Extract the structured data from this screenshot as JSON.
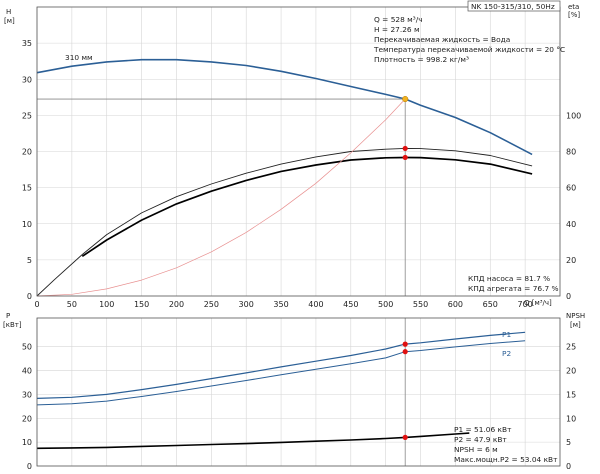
{
  "chart_data": [
    {
      "type": "line",
      "title": "NK 150-315/310, 50Hz",
      "xlabel": "Q [м³/ч]",
      "ylabel": "H",
      "ylabel_unit": "[м]",
      "y2label": "eta",
      "y2label_unit": "[%]",
      "xlim": [
        0,
        750
      ],
      "ylim": [
        0,
        40
      ],
      "y2lim": [
        0,
        160
      ],
      "x_ticks": [
        0,
        50,
        100,
        150,
        200,
        250,
        300,
        350,
        400,
        450,
        500,
        550,
        600,
        650,
        700
      ],
      "y_ticks": [
        0,
        5,
        10,
        15,
        20,
        25,
        30,
        35
      ],
      "y2_ticks": [
        0,
        20,
        40,
        60,
        80,
        100
      ],
      "grid": true,
      "annotation": "310 мм",
      "info_lines": [
        "Q = 528 м³/ч",
        "H = 27.26 м",
        "Перекачиваемая жидкость = Вода",
        "Температура перекачиваемой жидкости = 20 °C",
        "Плотность = 998.2 кг/м³"
      ],
      "eff_lines": [
        "КПД насоса = 81.7 %",
        "КПД агрегата = 76.7 %"
      ],
      "operating_point": {
        "x": 528,
        "y": 27.26
      },
      "eff_points": [
        {
          "x": 528,
          "y2": 81.7
        },
        {
          "x": 528,
          "y2": 76.7
        }
      ],
      "series": [
        {
          "name": "310 мм",
          "axis": "y",
          "color": "#2b5f96",
          "x": [
            0,
            50,
            100,
            150,
            200,
            250,
            300,
            350,
            400,
            450,
            500,
            528,
            550,
            600,
            650,
            710
          ],
          "values": [
            30.9,
            31.8,
            32.4,
            32.7,
            32.7,
            32.4,
            31.9,
            31.1,
            30.1,
            29.0,
            27.9,
            27.26,
            26.4,
            24.7,
            22.6,
            19.6
          ]
        },
        {
          "axis": "y2",
          "color": "#222222",
          "x": [
            0,
            25,
            65,
            100,
            150,
            200,
            250,
            300,
            350,
            400,
            450,
            500,
            528,
            550,
            600,
            650,
            710
          ],
          "values": [
            0,
            9,
            23,
            34,
            46,
            55,
            62,
            68,
            73,
            77,
            80,
            81.3,
            81.7,
            81.6,
            80.4,
            77.8,
            72.0
          ]
        },
        {
          "axis": "y2",
          "color": "#000000",
          "x": [
            65,
            100,
            150,
            200,
            250,
            300,
            350,
            400,
            450,
            500,
            528,
            550,
            600,
            650,
            710
          ],
          "values": [
            22,
            31,
            42,
            51,
            58,
            64,
            69,
            72.5,
            75.3,
            76.5,
            76.7,
            76.6,
            75.4,
            73.0,
            67.6
          ]
        },
        {
          "axis": "y",
          "color": "#e89090",
          "x": [
            0,
            50,
            100,
            150,
            200,
            250,
            300,
            350,
            400,
            450,
            500,
            528
          ],
          "values": [
            0,
            0.24,
            0.98,
            2.2,
            3.9,
            6.1,
            8.8,
            12.0,
            15.6,
            19.8,
            24.4,
            27.26
          ]
        }
      ]
    },
    {
      "type": "line",
      "ylabel": "P",
      "ylabel_unit": "[кВт]",
      "y2label": "NPSH",
      "y2label_unit": "[м]",
      "xlim": [
        0,
        750
      ],
      "ylim": [
        0,
        62
      ],
      "y2lim": [
        0,
        31
      ],
      "y_ticks": [
        0,
        10,
        20,
        30,
        40,
        50
      ],
      "y2_ticks": [
        0,
        5,
        10,
        15,
        20,
        25
      ],
      "grid": true,
      "info_lines": [
        "P1 = 51.06 кВт",
        "P2 = 47.9 кВт",
        "NPSH = 6 м",
        "Макс.мощн.P2 = 53.04 кВт"
      ],
      "points": [
        {
          "x": 528,
          "y": 51.06
        },
        {
          "x": 528,
          "y": 47.9
        },
        {
          "x": 528,
          "y2": 6
        }
      ],
      "series": [
        {
          "name": "P1",
          "axis": "y",
          "color": "#2b5f96",
          "x": [
            0,
            50,
            100,
            150,
            200,
            250,
            300,
            350,
            400,
            450,
            500,
            528,
            550,
            600,
            650,
            700
          ],
          "values": [
            28.3,
            28.8,
            30.0,
            32.0,
            34.2,
            36.6,
            39.0,
            41.5,
            43.9,
            46.3,
            49.0,
            51.06,
            51.6,
            53.2,
            54.7,
            56.0
          ]
        },
        {
          "name": "P2",
          "axis": "y",
          "color": "#2b5f96",
          "x": [
            0,
            50,
            100,
            150,
            200,
            250,
            300,
            350,
            400,
            450,
            500,
            528,
            550,
            600,
            650,
            700
          ],
          "values": [
            25.6,
            26.1,
            27.2,
            29.1,
            31.2,
            33.5,
            35.8,
            38.2,
            40.5,
            42.8,
            45.3,
            47.9,
            48.4,
            49.9,
            51.3,
            52.5
          ]
        },
        {
          "axis": "y2",
          "color": "#000000",
          "x": [
            0,
            50,
            100,
            150,
            200,
            250,
            300,
            350,
            400,
            450,
            500,
            528,
            550,
            600,
            620
          ],
          "values": [
            3.7,
            3.8,
            3.9,
            4.1,
            4.3,
            4.5,
            4.7,
            4.95,
            5.2,
            5.45,
            5.75,
            6.0,
            6.2,
            6.7,
            6.9
          ]
        }
      ]
    }
  ]
}
